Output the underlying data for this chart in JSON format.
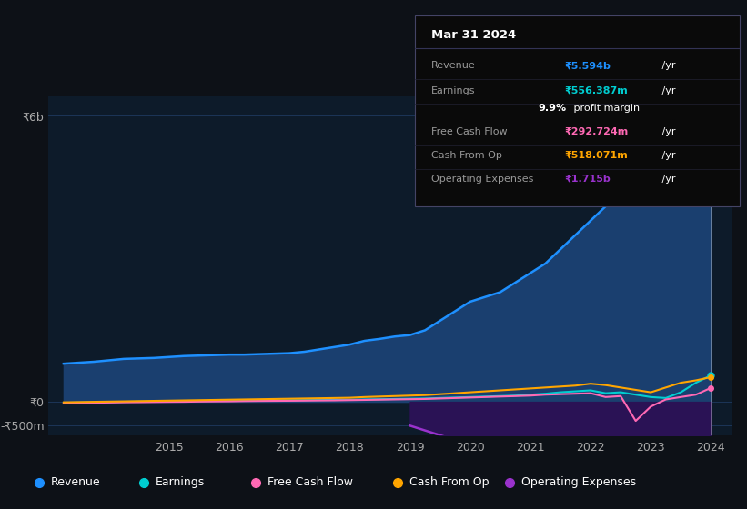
{
  "bg_color": "#0d1117",
  "plot_bg_color": "#0d1b2a",
  "years": [
    2013.25,
    2013.5,
    2013.75,
    2014.0,
    2014.25,
    2014.5,
    2014.75,
    2015.0,
    2015.25,
    2015.5,
    2015.75,
    2016.0,
    2016.25,
    2016.5,
    2016.75,
    2017.0,
    2017.25,
    2017.5,
    2017.75,
    2018.0,
    2018.25,
    2018.5,
    2018.75,
    2019.0,
    2019.25,
    2019.5,
    2019.75,
    2020.0,
    2020.25,
    2020.5,
    2020.75,
    2021.0,
    2021.25,
    2021.5,
    2021.75,
    2022.0,
    2022.25,
    2022.5,
    2022.75,
    2023.0,
    2023.25,
    2023.5,
    2023.75,
    2024.0
  ],
  "revenue": [
    800,
    820,
    840,
    870,
    900,
    910,
    920,
    940,
    960,
    970,
    980,
    990,
    990,
    1000,
    1010,
    1020,
    1050,
    1100,
    1150,
    1200,
    1280,
    1320,
    1370,
    1400,
    1500,
    1700,
    1900,
    2100,
    2200,
    2300,
    2500,
    2700,
    2900,
    3200,
    3500,
    3800,
    4100,
    4300,
    4500,
    4700,
    4900,
    5100,
    5400,
    5594
  ],
  "earnings": [
    -20,
    -15,
    -10,
    -5,
    0,
    5,
    8,
    10,
    15,
    18,
    20,
    22,
    25,
    28,
    30,
    32,
    35,
    38,
    40,
    42,
    50,
    55,
    60,
    65,
    70,
    80,
    90,
    100,
    110,
    120,
    130,
    150,
    170,
    200,
    220,
    240,
    180,
    200,
    150,
    100,
    80,
    200,
    400,
    556
  ],
  "free_cash_flow": [
    -30,
    -25,
    -20,
    -15,
    -10,
    -8,
    -5,
    -2,
    0,
    5,
    8,
    10,
    15,
    18,
    20,
    22,
    25,
    28,
    30,
    35,
    40,
    45,
    50,
    55,
    60,
    70,
    80,
    90,
    100,
    110,
    120,
    130,
    150,
    160,
    170,
    180,
    100,
    120,
    -400,
    -100,
    50,
    100,
    150,
    293
  ],
  "cash_from_op": [
    -10,
    -5,
    0,
    5,
    10,
    15,
    20,
    25,
    30,
    35,
    40,
    45,
    50,
    55,
    60,
    65,
    70,
    75,
    80,
    85,
    100,
    110,
    120,
    130,
    140,
    160,
    180,
    200,
    220,
    240,
    260,
    280,
    300,
    320,
    340,
    380,
    350,
    300,
    250,
    200,
    300,
    400,
    450,
    518
  ],
  "operating_expenses": [
    0,
    0,
    0,
    0,
    0,
    0,
    0,
    0,
    0,
    0,
    0,
    0,
    0,
    0,
    0,
    0,
    0,
    0,
    0,
    0,
    0,
    0,
    0,
    -500,
    -600,
    -700,
    -800,
    -900,
    -950,
    -1000,
    -1050,
    -1100,
    -1200,
    -1300,
    -1400,
    -1500,
    -1550,
    -1600,
    -1650,
    -1700,
    -1700,
    -1700,
    -1710,
    -1715
  ],
  "revenue_color": "#1e90ff",
  "earnings_color": "#00ced1",
  "free_cash_flow_color": "#ff69b4",
  "cash_from_op_color": "#ffa500",
  "operating_expenses_color": "#9932cc",
  "revenue_fill": "#1a3f6f",
  "operating_expenses_fill": "#2a1255",
  "yticks_labels": [
    "₹6b",
    "₹0",
    "-₹500m"
  ],
  "yticks_vals": [
    6000,
    0,
    -500
  ],
  "xlim_min": 2013.0,
  "xlim_max": 2024.35,
  "ylim_min": -700,
  "ylim_max": 6400,
  "xtick_years": [
    2015,
    2016,
    2017,
    2018,
    2019,
    2020,
    2021,
    2022,
    2023,
    2024
  ],
  "tooltip_title": "Mar 31 2024",
  "tooltip_rows": [
    {
      "label": "Revenue",
      "value": "₹5.594b",
      "unit": " /yr",
      "color": "#1e90ff",
      "is_margin": false
    },
    {
      "label": "Earnings",
      "value": "₹556.387m",
      "unit": " /yr",
      "color": "#00ced1",
      "is_margin": false
    },
    {
      "label": "",
      "value": "9.9%",
      "unit": " profit margin",
      "color": "white",
      "is_margin": true
    },
    {
      "label": "Free Cash Flow",
      "value": "₹292.724m",
      "unit": " /yr",
      "color": "#ff69b4",
      "is_margin": false
    },
    {
      "label": "Cash From Op",
      "value": "₹518.071m",
      "unit": " /yr",
      "color": "#ffa500",
      "is_margin": false
    },
    {
      "label": "Operating Expenses",
      "value": "₹1.715b",
      "unit": " /yr",
      "color": "#9932cc",
      "is_margin": false
    }
  ],
  "legend_labels": [
    "Revenue",
    "Earnings",
    "Free Cash Flow",
    "Cash From Op",
    "Operating Expenses"
  ],
  "legend_colors": [
    "#1e90ff",
    "#00ced1",
    "#ff69b4",
    "#ffa500",
    "#9932cc"
  ]
}
